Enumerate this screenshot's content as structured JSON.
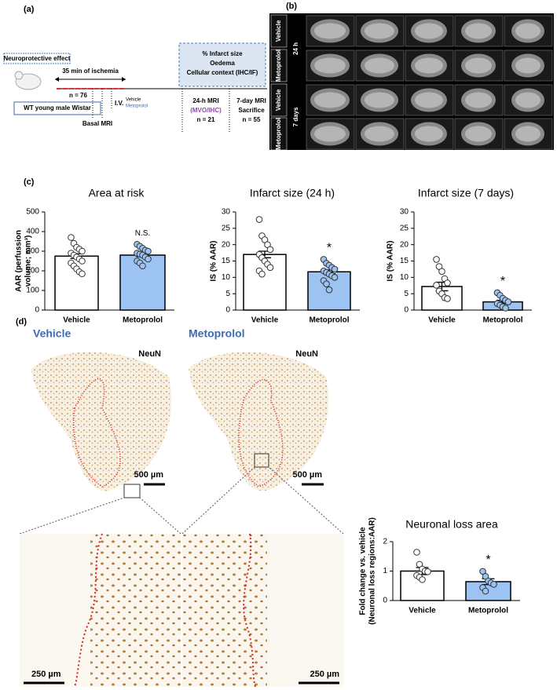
{
  "panel_labels": {
    "a": "(a)",
    "b": "(b)",
    "c": "(c)",
    "d": "(d)"
  },
  "schematic": {
    "effect": "Neuroprotective effect",
    "ischemia": "35 min of ischemia",
    "n_total": "n = 76",
    "animal": "WT young male Wistar",
    "basal": "Basal MRI",
    "iv": "I.V.",
    "treat_a": "Vehicle",
    "treat_b": "Metoprolol",
    "outcomes": [
      "% Infarct size",
      "Oedema",
      "Cellular context (IHC/IF)"
    ],
    "mri24": "24-h MRI",
    "mri24_sub": "(MVO/IHC)",
    "n24": "n = 21",
    "mri7": "7-day MRI",
    "sacrifice": "Sacrifice",
    "n7": "n = 55"
  },
  "mri": {
    "rows": [
      "Vehicle",
      "Metoprolol",
      "Vehicle",
      "Metoprolol"
    ],
    "groups": [
      "24 h",
      "7 days"
    ]
  },
  "histology": {
    "groups": [
      "Vehicle",
      "Metoprolol"
    ],
    "stain": [
      "NeuN",
      "NeuN"
    ],
    "scale_large": [
      "500 µm",
      "500 µm"
    ],
    "scale_small": [
      "250 µm",
      "250 µm"
    ]
  },
  "chart_data": [
    {
      "type": "bar",
      "title": "Area at risk",
      "ylabel": [
        "AAR (perfussion",
        "volume; mm³)"
      ],
      "categories": [
        "Vehicle",
        "Metoprolol"
      ],
      "values": [
        275,
        280
      ],
      "errors": [
        12,
        8
      ],
      "colors": [
        "#ffffff",
        "#9cc3f2"
      ],
      "annotations": [
        null,
        "N.S."
      ],
      "points": [
        [
          370,
          340,
          320,
          310,
          300,
          290,
          280,
          270,
          260,
          250,
          240,
          225,
          210,
          195,
          185
        ],
        [
          335,
          325,
          315,
          305,
          300,
          290,
          285,
          280,
          270,
          260,
          250,
          240,
          225
        ]
      ],
      "ylim": [
        0,
        500
      ],
      "yticks": [
        0,
        100,
        200,
        300,
        400,
        500
      ]
    },
    {
      "type": "bar",
      "title": "Infarct size (24 h)",
      "ylabel": [
        "IS (% AAR)"
      ],
      "categories": [
        "Vehicle",
        "Metoprolol"
      ],
      "values": [
        17,
        11.7
      ],
      "errors": [
        1,
        0.6
      ],
      "colors": [
        "#ffffff",
        "#9cc3f2"
      ],
      "annotations": [
        null,
        "*"
      ],
      "points": [
        [
          27.7,
          22.7,
          21.5,
          20,
          18.5,
          17,
          16,
          15,
          14,
          13,
          12,
          11
        ],
        [
          15.5,
          14.3,
          13.7,
          13,
          12.5,
          12,
          11.5,
          11,
          10.5,
          10,
          9,
          8,
          6.2
        ]
      ],
      "ylim": [
        0,
        30
      ],
      "yticks": [
        0,
        5,
        10,
        15,
        20,
        25,
        30
      ]
    },
    {
      "type": "bar",
      "title": "Infarct size (7 days)",
      "ylabel": [
        "IS (% AAR)"
      ],
      "categories": [
        "Vehicle",
        "Metoprolol"
      ],
      "values": [
        7.2,
        2.5
      ],
      "errors": [
        1.3,
        0.5
      ],
      "colors": [
        "#ffffff",
        "#9cc3f2"
      ],
      "annotations": [
        null,
        "*"
      ],
      "points": [
        [
          15.5,
          13.3,
          11.8,
          9.6,
          8.3,
          7.6,
          5.8,
          5,
          3.8,
          3.5
        ],
        [
          5.3,
          4.5,
          3.6,
          3,
          2.5,
          2,
          1.5,
          1,
          0.6
        ]
      ],
      "ylim": [
        0,
        30
      ],
      "yticks": [
        0,
        5,
        10,
        15,
        20,
        25,
        30
      ]
    },
    {
      "type": "bar",
      "title": "Neuronal loss area",
      "ylabel": [
        "Fold change vs. vehicle",
        "(Neuronal loss regions:AAR)"
      ],
      "categories": [
        "Vehicle",
        "Metoprolol"
      ],
      "values": [
        1.0,
        0.64
      ],
      "errors": [
        0.12,
        0.1
      ],
      "colors": [
        "#ffffff",
        "#9cc3f2"
      ],
      "annotations": [
        null,
        "*"
      ],
      "points": [
        [
          1.64,
          1.23,
          1.07,
          1.0,
          0.98,
          0.85,
          0.79,
          0.71
        ],
        [
          0.99,
          0.82,
          0.66,
          0.6,
          0.55,
          0.44,
          0.32
        ]
      ],
      "ylim": [
        0,
        2
      ],
      "yticks": [
        0,
        1,
        2
      ]
    }
  ]
}
